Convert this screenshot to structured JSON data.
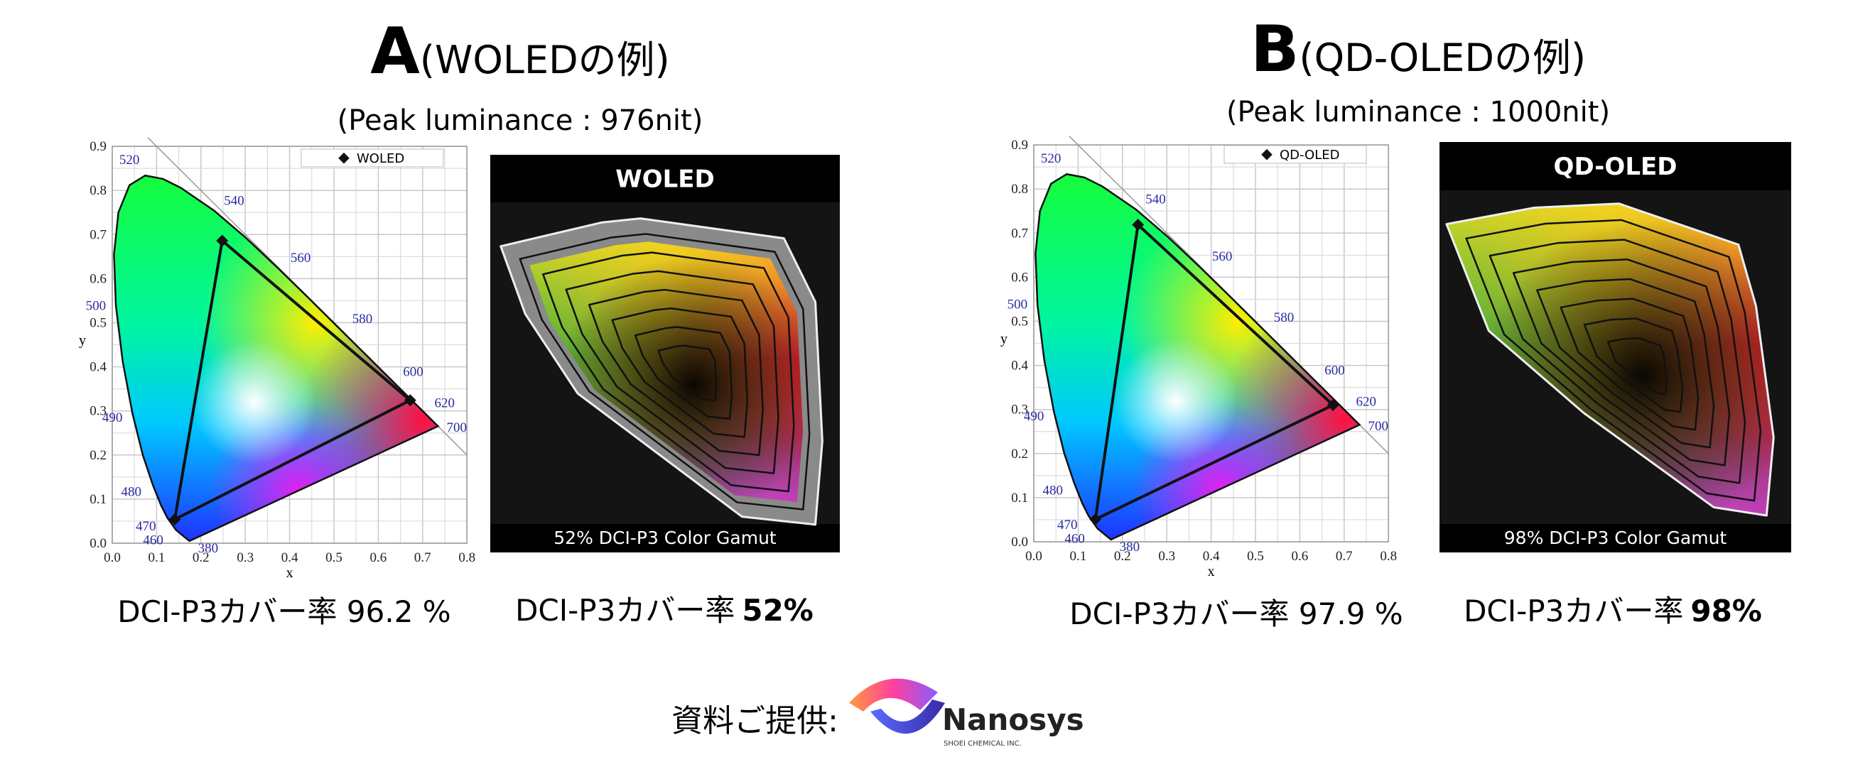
{
  "panels": [
    {
      "label": "A",
      "title": "(WOLEDの例)",
      "subtitle": "(Peak luminance : 976nit)",
      "cie": {
        "x_label": "x",
        "y_label": "y",
        "xticks": [
          {
            "value": 0,
            "label": "0.0"
          },
          0.1,
          0.2,
          0.3,
          0.4,
          0.5,
          0.6,
          0.7,
          0.8
        ],
        "yticks": [
          {
            "value": 0,
            "label": "0.0"
          },
          0.1,
          0.2,
          0.3,
          0.4,
          0.5,
          0.6,
          0.7,
          0.8,
          0.9
        ],
        "wavelengths": [
          520,
          540,
          560,
          580,
          600,
          620,
          700,
          500,
          490,
          480,
          470,
          460,
          380
        ],
        "legend": "WOLED",
        "primaries": [
          [
            0.672,
            0.324
          ],
          [
            0.248,
            0.686
          ],
          [
            0.141,
            0.054
          ]
        ]
      },
      "gamut_image": {
        "title": "WOLED",
        "caption": "52% DCI-P3 Color Gamut"
      },
      "coverage_chart": "DCI-P3カバー率 96.2 %",
      "coverage_image": {
        "prefix": "DCI-P3カバー率",
        "value": "52%"
      }
    },
    {
      "label": "B",
      "title": "(QD-OLEDの例)",
      "subtitle": "(Peak luminance : 1000nit)",
      "cie": {
        "x_label": "x",
        "y_label": "y",
        "xticks": [
          {
            "value": 0,
            "label": "0.0"
          },
          0.1,
          0.2,
          0.3,
          0.4,
          0.5,
          0.6,
          0.7,
          0.8
        ],
        "yticks": [
          {
            "value": 0,
            "label": "0.0"
          },
          0.1,
          0.2,
          0.3,
          0.4,
          0.5,
          0.6,
          0.7,
          0.8,
          0.9
        ],
        "wavelengths": [
          520,
          540,
          560,
          580,
          600,
          620,
          700,
          500,
          490,
          480,
          470,
          460,
          380
        ],
        "legend": "QD-OLED",
        "primaries": [
          [
            0.675,
            0.31
          ],
          [
            0.235,
            0.719
          ],
          [
            0.139,
            0.051
          ]
        ]
      },
      "gamut_image": {
        "title": "QD-OLED",
        "caption": "98% DCI-P3 Color Gamut"
      },
      "coverage_chart": "DCI-P3カバー率 97.9 %",
      "coverage_image": {
        "prefix": "DCI-P3カバー率",
        "value": "98%"
      }
    }
  ],
  "footer": {
    "text": "資料ご提供:",
    "logo_name": "Nanosys",
    "logo_sub": "SHOEI CHEMICAL INC."
  }
}
